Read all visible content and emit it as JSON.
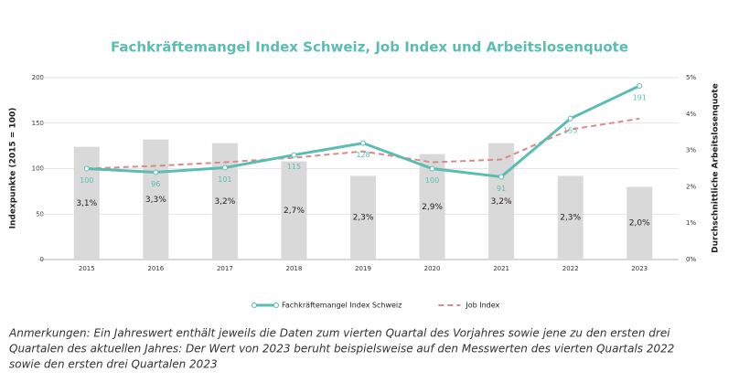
{
  "chart_data": {
    "type": "bar-line",
    "title": "Fachkräftemangel Index Schweiz, Job Index und Arbeitslosenquote",
    "y_label": "Indexpunkte (2015 = 100)",
    "y2_label": "Durchschnittliche Arbeitslosenquote",
    "categories": [
      "2015",
      "2016",
      "2017",
      "2018",
      "2019",
      "2020",
      "2021",
      "2022",
      "2023"
    ],
    "ylim": [
      0,
      200
    ],
    "yticks": [
      0,
      50,
      100,
      150,
      200
    ],
    "y2lim": [
      0,
      5
    ],
    "y2ticks": [
      {
        "value": 0,
        "label": "0%"
      },
      {
        "value": 1,
        "label": "1%"
      },
      {
        "value": 2,
        "label": "2%"
      },
      {
        "value": 3,
        "label": "3%"
      },
      {
        "value": 4,
        "label": "4%"
      },
      {
        "value": 5,
        "label": "5%"
      }
    ],
    "grid": true,
    "series": [
      {
        "type": "bar",
        "axis": "y2",
        "color": "#d9d9d9",
        "values": [
          3.1,
          3.3,
          3.2,
          2.7,
          2.3,
          2.9,
          3.2,
          2.3,
          2.0
        ],
        "value_labels": [
          "3,1%",
          "3,3%",
          "3,2%",
          "2,7%",
          "2,3%",
          "2,9%",
          "3,2%",
          "2,3%",
          "2,0%"
        ]
      },
      {
        "type": "line",
        "name": "Fachkräftemangel Index Schweiz",
        "color": "#5bbdb2",
        "values": [
          100,
          96,
          101,
          115,
          128,
          100,
          91,
          155,
          191
        ]
      },
      {
        "type": "dashed",
        "name": "Job Index",
        "color": "#d98a8a",
        "values": [
          100,
          103,
          107,
          112,
          119,
          107,
          110,
          143,
          155
        ]
      }
    ],
    "note": [
      "Anmerkungen: Ein Jahreswert enthält jeweils die Daten zum vierten Quartal des Vorjahres sowie jene zu den ersten drei",
      "Quartalen des aktuellen Jahres: Der Wert von 2023 beruht beispielsweise auf den Messwerten des vierten Quartals 2022",
      "sowie den ersten drei Quartalen 2023"
    ]
  }
}
